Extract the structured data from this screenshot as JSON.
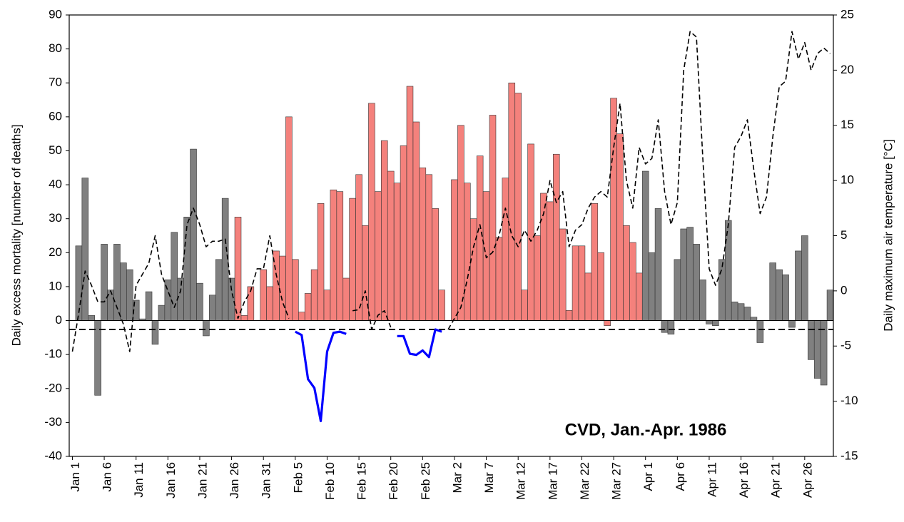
{
  "chart_data": {
    "type": "bar",
    "y_label": "Daily excess mortality [number of deaths]",
    "y2_label": "Daily maximum air temperature [°C]",
    "annotation": "CVD, Jan.-Apr. 1986",
    "ylim": [
      -40,
      90
    ],
    "yticks": [
      -40,
      -30,
      -20,
      -10,
      0,
      10,
      20,
      30,
      40,
      50,
      60,
      70,
      80,
      90
    ],
    "y2lim": [
      -15,
      25
    ],
    "y2ticks": [
      -15,
      -10,
      -5,
      0,
      5,
      10,
      15,
      20,
      25
    ],
    "grid": false,
    "reference_line": {
      "value": -3.5,
      "axis": "y2",
      "color": "#000000",
      "dash": true
    },
    "categories": [
      "Jan 1",
      null,
      null,
      null,
      null,
      "Jan 6",
      null,
      null,
      null,
      null,
      "Jan 11",
      null,
      null,
      null,
      null,
      "Jan 16",
      null,
      null,
      null,
      null,
      "Jan 21",
      null,
      null,
      null,
      null,
      "Jan 26",
      null,
      null,
      null,
      null,
      "Jan 31",
      null,
      null,
      null,
      null,
      "Feb 5",
      null,
      null,
      null,
      null,
      "Feb 10",
      null,
      null,
      null,
      null,
      "Feb 15",
      null,
      null,
      null,
      null,
      "Feb 20",
      null,
      null,
      null,
      null,
      "Feb 25",
      null,
      null,
      null,
      null,
      "Mar 2",
      null,
      null,
      null,
      null,
      "Mar 7",
      null,
      null,
      null,
      null,
      "Mar 12",
      null,
      null,
      null,
      null,
      "Mar 17",
      null,
      null,
      null,
      null,
      "Mar 22",
      null,
      null,
      null,
      null,
      "Mar 27",
      null,
      null,
      null,
      null,
      "Apr 1",
      null,
      null,
      null,
      null,
      "Apr 6",
      null,
      null,
      null,
      null,
      "Apr 11",
      null,
      null,
      null,
      null,
      "Apr 16",
      null,
      null,
      null,
      null,
      "Apr 21",
      null,
      null,
      null,
      null,
      "Apr 26",
      null,
      null,
      null,
      null
    ],
    "series": [
      {
        "type": "bar",
        "values": [
          0,
          22,
          42,
          1.5,
          -22,
          22.5,
          9,
          22.5,
          17,
          15,
          6,
          0.5,
          8.5,
          -7,
          4.5,
          12,
          26,
          12.5,
          30.5,
          50.5,
          11,
          -4.5,
          7.5,
          18,
          36,
          12.5,
          30.5,
          1.5,
          10,
          0,
          15,
          10,
          20.5,
          19,
          60,
          18,
          2.5,
          8,
          15,
          34.5,
          9,
          38.5,
          38,
          12.5,
          36,
          43,
          28,
          64,
          38,
          53,
          44,
          40.5,
          51.5,
          69,
          58.5,
          45,
          43,
          33,
          9,
          0,
          41.5,
          57.5,
          40.5,
          30,
          48.5,
          38,
          60.5,
          24.5,
          42,
          70,
          67,
          9,
          52,
          25,
          37.5,
          35,
          49,
          27,
          3,
          22,
          22,
          14,
          34.5,
          20,
          -1.5,
          65.5,
          55,
          28,
          23,
          14,
          44,
          20,
          33,
          -3.5,
          -4,
          18,
          27,
          27.5,
          22.5,
          12,
          -1,
          -1.5,
          18,
          29.5,
          5.5,
          5,
          4,
          1,
          -6.5,
          0,
          17,
          15,
          13.5,
          -2,
          20.5,
          25,
          -11.5,
          -17,
          -19,
          9
        ],
        "colors": [
          "#808080",
          "#808080",
          "#808080",
          "#808080",
          "#808080",
          "#808080",
          "#808080",
          "#808080",
          "#808080",
          "#808080",
          "#808080",
          "#808080",
          "#808080",
          "#808080",
          "#808080",
          "#808080",
          "#808080",
          "#808080",
          "#808080",
          "#808080",
          "#808080",
          "#808080",
          "#808080",
          "#808080",
          "#808080",
          "#808080",
          "#f4817c",
          "#f4817c",
          "#f4817c",
          "#f4817c",
          "#f4817c",
          "#f4817c",
          "#f4817c",
          "#f4817c",
          "#f4817c",
          "#f4817c",
          "#f4817c",
          "#f4817c",
          "#f4817c",
          "#f4817c",
          "#f4817c",
          "#f4817c",
          "#f4817c",
          "#f4817c",
          "#f4817c",
          "#f4817c",
          "#f4817c",
          "#f4817c",
          "#f4817c",
          "#f4817c",
          "#f4817c",
          "#f4817c",
          "#f4817c",
          "#f4817c",
          "#f4817c",
          "#f4817c",
          "#f4817c",
          "#f4817c",
          "#f4817c",
          "#f4817c",
          "#f4817c",
          "#f4817c",
          "#f4817c",
          "#f4817c",
          "#f4817c",
          "#f4817c",
          "#f4817c",
          "#f4817c",
          "#f4817c",
          "#f4817c",
          "#f4817c",
          "#f4817c",
          "#f4817c",
          "#f4817c",
          "#f4817c",
          "#f4817c",
          "#f4817c",
          "#f4817c",
          "#f4817c",
          "#f4817c",
          "#f4817c",
          "#f4817c",
          "#f4817c",
          "#f4817c",
          "#f4817c",
          "#f4817c",
          "#f4817c",
          "#f4817c",
          "#f4817c",
          "#f4817c",
          "#808080",
          "#808080",
          "#808080",
          "#808080",
          "#808080",
          "#808080",
          "#808080",
          "#808080",
          "#808080",
          "#808080",
          "#808080",
          "#808080",
          "#808080",
          "#808080",
          "#808080",
          "#808080",
          "#808080",
          "#808080",
          "#808080",
          "#808080",
          "#808080",
          "#808080",
          "#808080",
          "#808080",
          "#808080",
          "#808080",
          "#808080",
          "#808080",
          "#808080",
          "#808080"
        ]
      },
      {
        "type": "line",
        "axis": "y2",
        "color": "#000000",
        "dash": true,
        "values": [
          -5.5,
          -2,
          1.8,
          0.5,
          -1,
          -1,
          0,
          -1.5,
          -3,
          -5.5,
          0.5,
          1.5,
          2.5,
          5,
          1.5,
          0,
          -1.5,
          0,
          6,
          7.5,
          6,
          4,
          4.5,
          4.5,
          4.7,
          0,
          -2.5,
          -1,
          0,
          2,
          2,
          5,
          1.5,
          -1,
          -2.5,
          null,
          null,
          null,
          null,
          null,
          null,
          null,
          null,
          null,
          -1.8,
          -1.7,
          0,
          -3.5,
          -2.2,
          -1.8,
          -3.3,
          null,
          null,
          null,
          null,
          null,
          null,
          null,
          null,
          -3.5,
          -2.5,
          -1.5,
          1,
          4,
          6,
          3,
          3.5,
          5,
          7.5,
          5,
          4,
          5.5,
          4.5,
          5.5,
          7,
          10,
          8,
          9,
          4,
          5.5,
          6,
          7.5,
          8.5,
          9,
          8.5,
          13,
          17,
          10,
          7.5,
          13,
          11.5,
          12,
          15.5,
          9,
          6,
          8,
          20,
          23.5,
          23,
          12,
          2,
          0.5,
          2,
          6,
          13,
          14,
          15.5,
          11,
          7,
          8.5,
          14,
          18.5,
          19,
          23.5,
          21,
          22.5,
          20,
          21.5,
          22,
          21.5
        ]
      },
      {
        "type": "line",
        "axis": "y2",
        "color": "#0000ff",
        "dash": false,
        "values": [
          null,
          null,
          null,
          null,
          null,
          null,
          null,
          null,
          null,
          null,
          null,
          null,
          null,
          null,
          null,
          null,
          null,
          null,
          null,
          null,
          null,
          null,
          null,
          null,
          null,
          null,
          null,
          null,
          null,
          null,
          null,
          null,
          null,
          null,
          null,
          -3.7,
          -4,
          -8,
          -8.8,
          -11.8,
          -5.5,
          -3.8,
          -3.7,
          -3.9,
          null,
          null,
          null,
          null,
          null,
          null,
          null,
          -4.1,
          -4.1,
          -5.7,
          -5.8,
          -5.4,
          -6,
          -3.5,
          -3.7,
          null,
          null,
          null,
          null,
          null,
          null,
          null,
          null,
          null,
          null,
          null,
          null,
          null,
          null,
          null,
          null,
          null,
          null,
          null,
          null,
          null,
          null,
          null,
          null,
          null,
          null,
          null,
          null,
          null,
          null,
          null,
          null,
          null,
          null,
          null,
          null,
          null,
          null,
          null,
          null,
          null,
          null,
          null,
          null,
          null,
          null,
          null,
          null,
          null,
          null,
          null,
          null,
          null,
          null,
          null,
          null,
          null,
          null,
          null,
          null,
          null
        ]
      }
    ]
  }
}
